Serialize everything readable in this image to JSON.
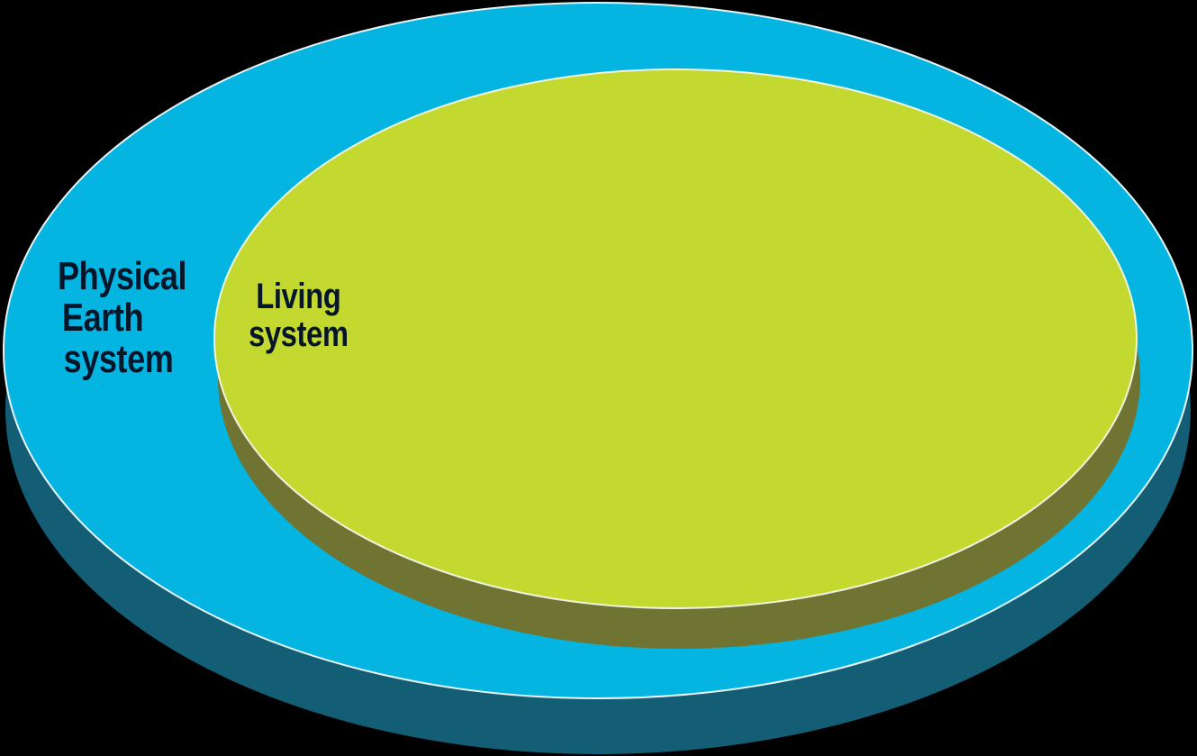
{
  "diagram": {
    "outer_set": {
      "label_lines": [
        "Physical",
        "Earth",
        "system"
      ]
    },
    "inner_set": {
      "label_lines": [
        "Living",
        "system"
      ]
    }
  },
  "colors": {
    "background": "#000000",
    "outer_top": "#04b5e1",
    "outer_side": "#135d75",
    "inner_top": "#c4d92f",
    "inner_side": "#6f7432",
    "outline": "#e9f4f8",
    "label_text": "#06162a"
  }
}
